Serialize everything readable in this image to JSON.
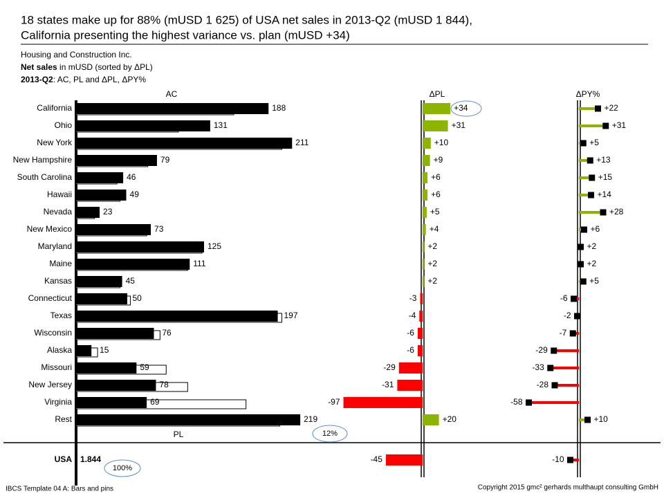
{
  "title": [
    "18 states make up for 88% (mUSD 1 625) of USA net sales in 2013-Q2 (mUSD 1 844),",
    "California presenting the highest variance vs. plan (mUSD +34)"
  ],
  "subtitle": {
    "company": "Housing and Construction Inc.",
    "measure_bold": "Net sales",
    "measure_rest": " in mUSD (sorted by ΔPL)",
    "period_bold": "2013-Q2",
    "period_rest": ": AC, PL and ΔPL, ΔPY%"
  },
  "footer": "IBCS Template 04 A: Bars and pins",
  "copyright": "Copyright 2015 gmc² gerhards multhaupt consulting GmbH",
  "chart_data": {
    "type": "ibcs-bars-pins",
    "categories": [
      "California",
      "Ohio",
      "New York",
      "New Hampshire",
      "South Carolina",
      "Hawaii",
      "Nevada",
      "New Mexico",
      "Maryland",
      "Maine",
      "Kansas",
      "Connecticut",
      "Texas",
      "Wisconsin",
      "Alaska",
      "Missouri",
      "New Jersey",
      "Virginia",
      "Rest"
    ],
    "positive_color": "#8cb400",
    "negative_color": "#ff0000",
    "series": [
      {
        "name": "AC",
        "color": "#000000",
        "values": [
          188,
          131,
          211,
          79,
          46,
          49,
          23,
          73,
          125,
          111,
          45,
          50,
          197,
          76,
          15,
          59,
          78,
          69,
          219
        ]
      },
      {
        "name": "PL",
        "color": "#ffffff",
        "values": [
          154,
          100,
          201,
          70,
          40,
          43,
          18,
          69,
          123,
          109,
          43,
          53,
          201,
          82,
          21,
          88,
          109,
          166,
          199
        ]
      },
      {
        "name": "ΔPL",
        "values": [
          34,
          31,
          10,
          9,
          6,
          6,
          5,
          4,
          2,
          2,
          2,
          -3,
          -4,
          -6,
          -6,
          -29,
          -31,
          -97,
          20
        ],
        "value_labels": [
          "+34",
          "+31",
          "+10",
          "+9",
          "+6",
          "+6",
          "+5",
          "+4",
          "+2",
          "+2",
          "+2",
          "-3",
          "-4",
          "-6",
          "-6",
          "-29",
          "-31",
          "-97",
          "+20"
        ]
      },
      {
        "name": "ΔPY%",
        "values": [
          22,
          31,
          5,
          13,
          15,
          14,
          28,
          6,
          2,
          2,
          5,
          -6,
          -2,
          -7,
          -29,
          -33,
          -28,
          -58,
          10
        ],
        "value_labels": [
          "+22",
          "+31",
          "+5",
          "+13",
          "+15",
          "+14",
          "+28",
          "+6",
          "+2",
          "+2",
          "+5",
          "-6",
          "-2",
          "-7",
          "-29",
          "-33",
          "-28",
          "-58",
          "+10"
        ]
      }
    ],
    "total": {
      "category": "USA",
      "ac": 1844,
      "ac_label": "1.844",
      "delta_pl": -45,
      "delta_py": -10
    },
    "annotations": [
      "12%",
      "100%"
    ]
  }
}
